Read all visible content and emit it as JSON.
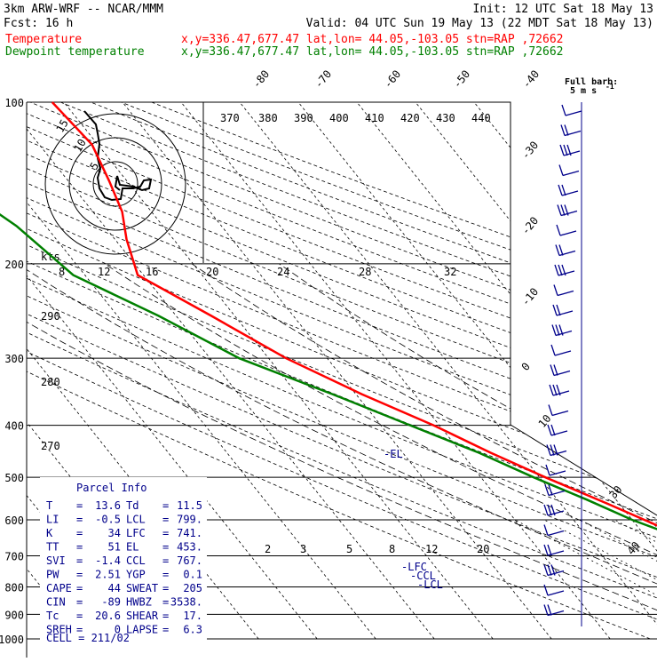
{
  "header": {
    "line1_left": "3km ARW-WRF -- NCAR/MMM",
    "line1_right": "Init: 12 UTC Sat 18 May 13",
    "line2_left": "Fcst:   16 h",
    "line2_right": "Valid: 04 UTC Sun 19 May 13 (22 MDT Sat 18 May 13)",
    "temp_label": "Temperature",
    "temp_info": "x,y=336.47,677.47   lat,lon= 44.05,-103.05  stn=RAP ,72662",
    "dew_label": "Dewpoint temperature",
    "dew_info": "x,y=336.47,677.47   lat,lon= 44.05,-103.05  stn=RAP ,72662"
  },
  "colors": {
    "temperature": "#ff0000",
    "dewpoint": "#008000",
    "wind": "#00008b",
    "parcel": "#00008b"
  },
  "pressure_labels": [
    "100",
    "200",
    "300",
    "400",
    "500",
    "600",
    "700",
    "800",
    "900",
    "1000"
  ],
  "isotherm_labels": [
    "-80",
    "-70",
    "-60",
    "-50",
    "-40",
    "-30",
    "-20",
    "-10",
    "0",
    "10",
    "30",
    "40"
  ],
  "theta_labels": [
    "370",
    "380",
    "390",
    "400",
    "410",
    "420",
    "430",
    "440"
  ],
  "theta_left_labels": [
    "290",
    "280",
    "270"
  ],
  "mixing_ratio_labels": [
    "2",
    "3",
    "5",
    "8",
    "12",
    "20"
  ],
  "hodo": {
    "speed_labels": [
      "8",
      "12",
      "16",
      "20",
      "24",
      "28",
      "32"
    ],
    "units": "kts",
    "ring_labels": [
      "15",
      "10",
      "5"
    ]
  },
  "barb_legend": {
    "line1": "Full barb:",
    "line2": "5 m s",
    "exp": "-1"
  },
  "levels": {
    "el": "-EL",
    "lfc": "-LFC",
    "lcl": "-LCL",
    "ccl": "-CCL"
  },
  "parcel_info": {
    "title": "Parcel Info",
    "rows": [
      {
        "k1": "T",
        "v1": "13.6",
        "k2": "Td",
        "v2": "11.5"
      },
      {
        "k1": "LI",
        "v1": "-0.5",
        "k2": "LCL",
        "v2": "799."
      },
      {
        "k1": "K",
        "v1": "34",
        "k2": "LFC",
        "v2": "741."
      },
      {
        "k1": "TT",
        "v1": "51",
        "k2": "EL",
        "v2": "453."
      },
      {
        "k1": "SVI",
        "v1": "-1.4",
        "k2": "CCL",
        "v2": "767."
      },
      {
        "k1": "PW",
        "v1": "2.51",
        "k2": "YGP",
        "v2": "0.1"
      },
      {
        "k1": "CAPE",
        "v1": "44",
        "k2": "SWEAT",
        "v2": "205"
      },
      {
        "k1": "CIN",
        "v1": "-89",
        "k2": "HWBZ",
        "v2": "3538."
      },
      {
        "k1": "Tc",
        "v1": "20.6",
        "k2": "SHEAR",
        "v2": "17."
      },
      {
        "k1": "SREH",
        "v1": "0",
        "k2": "LAPSE",
        "v2": "6.3"
      }
    ],
    "cell": "CELL = 211/02"
  },
  "chart_data": {
    "type": "line",
    "title": "",
    "xlabel": "",
    "ylabel": "",
    "y_scale": "log-pressure (hPa)",
    "ylim": [
      1000,
      100
    ],
    "series": [
      {
        "name": "Temperature",
        "x": [
          22.0,
          20.5,
          17.0,
          15.2,
          13.6,
          10.0,
          7.0,
          3.5,
          0.0,
          -6.0,
          -12.0,
          -19.0,
          -25.0,
          -31.0,
          -39.0,
          -47.0,
          -54.0,
          -61.0,
          -58.0,
          -55.0,
          -53.0,
          -51.0,
          -52.0
        ],
        "y": [
          888,
          878,
          860,
          840,
          815,
          790,
          760,
          720,
          680,
          620,
          560,
          500,
          450,
          400,
          350,
          300,
          250,
          210,
          180,
          160,
          140,
          120,
          100
        ]
      },
      {
        "name": "Dewpoint temperature",
        "x": [
          15.0,
          14.0,
          12.5,
          11.5,
          10.0,
          8.0,
          5.0,
          1.0,
          -4.0,
          -10.0,
          -15.0,
          -21.0,
          -27.0,
          -35.0,
          -44.0,
          -55.0,
          -63.0,
          -72.0,
          -75.0,
          -80.0,
          -83.0,
          -86.0
        ],
        "y": [
          888,
          878,
          860,
          840,
          810,
          780,
          740,
          700,
          650,
          600,
          550,
          500,
          450,
          400,
          350,
          300,
          250,
          210,
          170,
          140,
          120,
          100
        ]
      }
    ]
  }
}
